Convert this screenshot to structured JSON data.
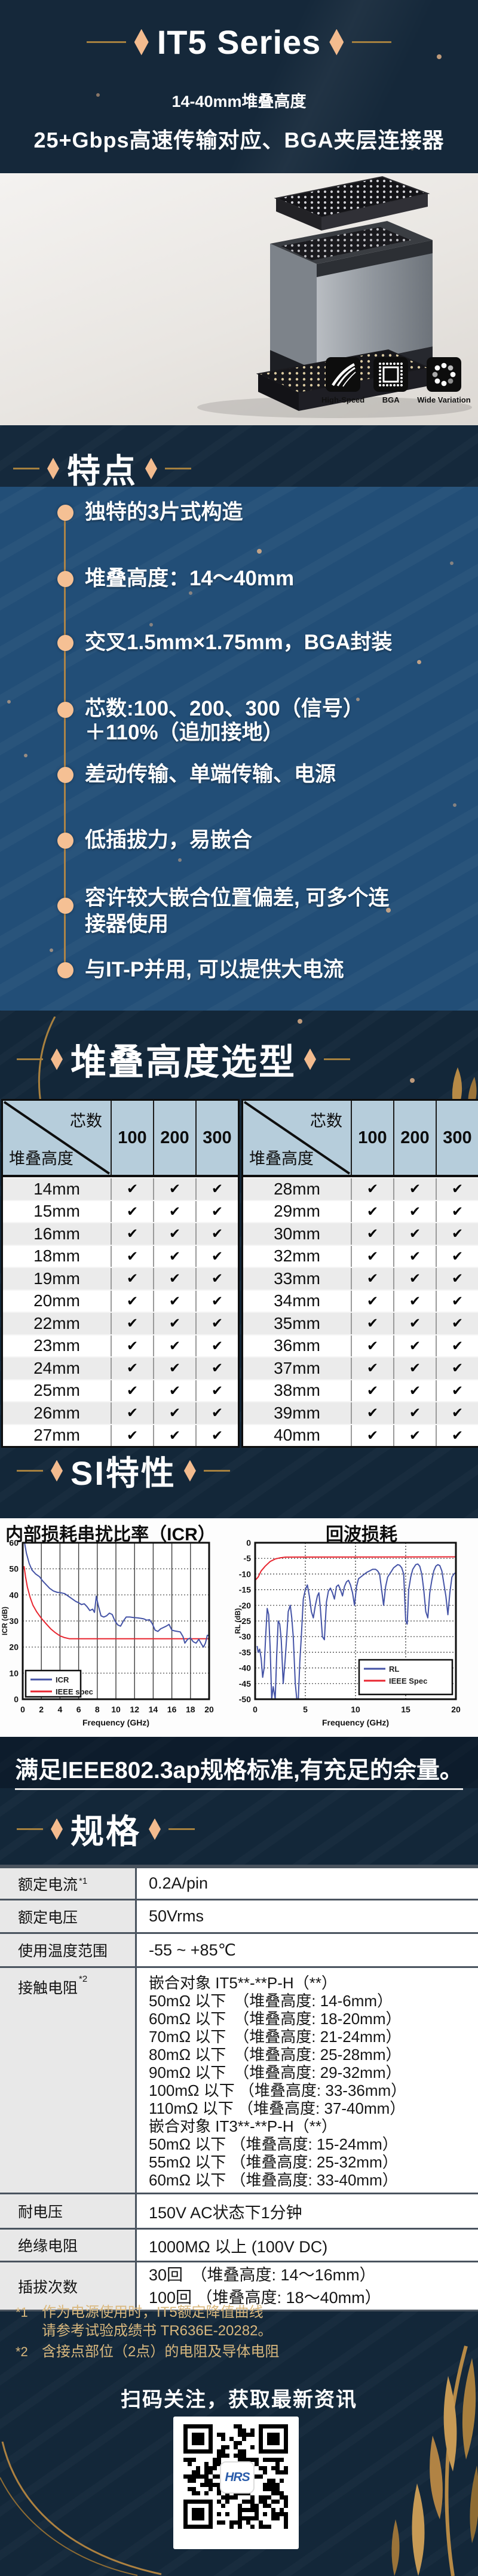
{
  "header": {
    "title": "IT5 Series",
    "subtitle1": "14-40mm堆叠高度",
    "subtitle2": "25+Gbps高速传输对应、BGA夹层连接器"
  },
  "badges": [
    {
      "label": "High-Speed",
      "icon": "highway-icon"
    },
    {
      "label": "BGA",
      "icon": "bga-chip-icon"
    },
    {
      "label": "Wide Variation",
      "icon": "variation-dots-icon"
    }
  ],
  "features": {
    "section_title": "特点",
    "items": [
      "独特的3片式构造",
      "堆叠高度：14～40mm",
      "交叉1.5mm×1.75mm，BGA封装",
      "芯数:100、200、300（信号）\n ＋110%（追加接地）",
      "差动传输、单端传输、电源",
      "低插拔力，易嵌合",
      "容许较大嵌合位置偏差, 可多个连\n接器使用",
      "与IT-P并用, 可以提供大电流"
    ]
  },
  "stack_height": {
    "section_title": "堆叠高度选型",
    "corner_top": "芯数",
    "corner_bottom": "堆叠高度",
    "columns": [
      "100",
      "200",
      "300"
    ],
    "left_rows": [
      {
        "h": "14mm",
        "c1": "✔",
        "c2": "✔",
        "c3": "✔"
      },
      {
        "h": "15mm",
        "c1": "✔",
        "c2": "✔",
        "c3": "✔"
      },
      {
        "h": "16mm",
        "c1": "✔",
        "c2": "✔",
        "c3": "✔"
      },
      {
        "h": "18mm",
        "c1": "✔",
        "c2": "✔",
        "c3": "✔"
      },
      {
        "h": "19mm",
        "c1": "✔",
        "c2": "✔",
        "c3": "✔"
      },
      {
        "h": "20mm",
        "c1": "✔",
        "c2": "✔",
        "c3": "✔"
      },
      {
        "h": "22mm",
        "c1": "✔",
        "c2": "✔",
        "c3": "✔"
      },
      {
        "h": "23mm",
        "c1": "✔",
        "c2": "✔",
        "c3": "✔"
      },
      {
        "h": "24mm",
        "c1": "✔",
        "c2": "✔",
        "c3": "✔"
      },
      {
        "h": "25mm",
        "c1": "✔",
        "c2": "✔",
        "c3": "✔"
      },
      {
        "h": "26mm",
        "c1": "✔",
        "c2": "✔",
        "c3": "✔"
      },
      {
        "h": "27mm",
        "c1": "✔",
        "c2": "✔",
        "c3": "✔"
      }
    ],
    "right_rows": [
      {
        "h": "28mm",
        "c1": "✔",
        "c2": "✔",
        "c3": "✔"
      },
      {
        "h": "29mm",
        "c1": "✔",
        "c2": "✔",
        "c3": "✔"
      },
      {
        "h": "30mm",
        "c1": "✔",
        "c2": "✔",
        "c3": "✔"
      },
      {
        "h": "32mm",
        "c1": "✔",
        "c2": "✔",
        "c3": "✔"
      },
      {
        "h": "33mm",
        "c1": "✔",
        "c2": "✔",
        "c3": "✔"
      },
      {
        "h": "34mm",
        "c1": "✔",
        "c2": "✔",
        "c3": "✔"
      },
      {
        "h": "35mm",
        "c1": "✔",
        "c2": "✔",
        "c3": "✔"
      },
      {
        "h": "36mm",
        "c1": "✔",
        "c2": "✔",
        "c3": "✔"
      },
      {
        "h": "37mm",
        "c1": "✔",
        "c2": "✔",
        "c3": "✔"
      },
      {
        "h": "38mm",
        "c1": "✔",
        "c2": "✔",
        "c3": "✔"
      },
      {
        "h": "39mm",
        "c1": "✔",
        "c2": "✔",
        "c3": "✔"
      },
      {
        "h": "40mm",
        "c1": "✔",
        "c2": "✔",
        "c3": "✔"
      }
    ]
  },
  "si": {
    "section_title": "SI特性",
    "conclusion": "满足IEEE802.3ap规格标准,有充足的余量。"
  },
  "chart_data": [
    {
      "type": "line",
      "title": "内部损耗串扰比率（ICR）",
      "xlabel": "Frequency (GHz)",
      "ylabel": "ICR (dB)",
      "xlim": [
        0,
        20
      ],
      "ylim": [
        0,
        60
      ],
      "xticks": [
        0,
        2,
        4,
        6,
        8,
        10,
        12,
        14,
        16,
        18,
        20
      ],
      "yticks": [
        0,
        10,
        20,
        30,
        40,
        50,
        60
      ],
      "xgrid": "solid",
      "ygrid": "dotted",
      "legend_pos": "bottom-left",
      "series": [
        {
          "name": "ICR",
          "color": "#4453a6",
          "x": [
            0.2,
            0.4,
            0.7,
            1.0,
            1.4,
            1.8,
            2.1,
            2.5,
            2.9,
            3.3,
            3.7,
            4.1,
            4.5,
            4.9,
            5.3,
            5.7,
            6.0,
            6.3,
            6.6,
            6.9,
            7.2,
            7.5,
            7.7,
            7.9,
            8.1,
            8.4,
            8.7,
            9.0,
            9.3,
            9.6,
            9.9,
            10.2,
            10.5,
            10.8,
            11.1,
            11.5,
            11.9,
            12.3,
            12.7,
            13.0,
            13.3,
            13.6,
            13.9,
            14.2,
            14.5,
            14.8,
            15.1,
            15.4,
            15.7,
            16.0,
            16.3,
            16.6,
            16.9,
            17.2,
            17.4,
            17.7,
            18.0,
            18.3,
            18.6,
            18.9,
            19.2,
            19.4,
            19.6,
            19.8,
            20.0
          ],
          "y": [
            60,
            56,
            52,
            49.5,
            48,
            47,
            45.5,
            44,
            42.5,
            41.5,
            41,
            40.8,
            40.5,
            39.5,
            38.5,
            37.5,
            37,
            36.3,
            36.6,
            35.5,
            34,
            34.5,
            33.3,
            39.5,
            36,
            32,
            31.5,
            32,
            33,
            32.5,
            30,
            28.5,
            28,
            30,
            31.5,
            31.5,
            31.3,
            31.2,
            31,
            30.8,
            30.3,
            30.5,
            29,
            26.5,
            26,
            27,
            27.5,
            28,
            28.7,
            26.5,
            26.2,
            26,
            25.8,
            24,
            21.5,
            23,
            23.5,
            22,
            21.5,
            23,
            21,
            20,
            21.5,
            24.5,
            24.5
          ]
        },
        {
          "name": "IEEE spec",
          "color": "#e82630",
          "x": [
            0.15,
            0.3,
            0.5,
            0.8,
            1.1,
            1.5,
            2.0,
            2.5,
            3.0,
            3.5,
            4.0,
            4.5,
            5.0,
            20
          ],
          "y": [
            51,
            47,
            43,
            39,
            36,
            33.5,
            31,
            29,
            27,
            25.5,
            24.3,
            23.6,
            23.2,
            23.2
          ]
        }
      ]
    },
    {
      "type": "line",
      "title": "回波损耗",
      "xlabel": "Frequency (GHz)",
      "ylabel": "RL (dB)",
      "xlim": [
        0,
        20
      ],
      "ylim": [
        -50,
        0
      ],
      "xticks": [
        0,
        5,
        10,
        15,
        20
      ],
      "yticks": [
        0,
        -5,
        -10,
        -15,
        -20,
        -25,
        -30,
        -35,
        -40,
        -45,
        -50
      ],
      "xgrid": "dotted",
      "ygrid": "dotted",
      "legend_pos": "bottom-right",
      "series": [
        {
          "name": "RL",
          "color": "#4453a6",
          "x": [
            0.2,
            0.3,
            0.45,
            0.6,
            0.75,
            0.9,
            1.05,
            1.2,
            1.35,
            1.5,
            1.65,
            1.8,
            2.0,
            2.15,
            2.3,
            2.45,
            2.6,
            2.8,
            3.0,
            3.15,
            3.3,
            3.5,
            3.65,
            3.8,
            4.0,
            4.15,
            4.3,
            4.45,
            4.6,
            4.8,
            5.0,
            5.2,
            5.4,
            5.6,
            5.8,
            6.0,
            6.2,
            6.35,
            6.5,
            6.7,
            6.9,
            7.1,
            7.3,
            7.5,
            7.7,
            7.9,
            8.1,
            8.3,
            8.5,
            8.7,
            8.9,
            9.1,
            9.3,
            9.5,
            9.7,
            9.9,
            10.1,
            10.3,
            10.5,
            10.7,
            10.9,
            11.1,
            11.4,
            11.7,
            12.0,
            12.2,
            12.4,
            12.6,
            12.8,
            13.0,
            13.2,
            13.4,
            13.6,
            13.8,
            14.0,
            14.2,
            14.4,
            14.6,
            14.8,
            15.0,
            15.15,
            15.3,
            15.5,
            15.7,
            16.0,
            16.2,
            16.4,
            16.6,
            16.8,
            17.0,
            17.2,
            17.4,
            17.6,
            17.8,
            18.0,
            18.2,
            18.4,
            18.6,
            18.8,
            19.0,
            19.2,
            19.4,
            19.6,
            19.8,
            20.0
          ],
          "y": [
            -33,
            -35,
            -34,
            -37,
            -43,
            -40,
            -30,
            -21,
            -23,
            -34,
            -50,
            -46,
            -50,
            -36,
            -25,
            -26,
            -31,
            -45,
            -37,
            -30,
            -22,
            -20,
            -24,
            -30,
            -45,
            -50,
            -50,
            -38,
            -30,
            -18,
            -15,
            -13.5,
            -17,
            -22,
            -24,
            -20,
            -17,
            -16,
            -21,
            -30,
            -31,
            -19,
            -15.5,
            -14.5,
            -16,
            -18,
            -14,
            -13.5,
            -15,
            -17,
            -14,
            -12.5,
            -12,
            -13.5,
            -16,
            -20,
            -14,
            -11.5,
            -11,
            -10.5,
            -10,
            -9.5,
            -9,
            -8.5,
            -8.5,
            -9,
            -10,
            -15,
            -20,
            -14,
            -11,
            -10,
            -9,
            -8,
            -7.5,
            -7,
            -7.2,
            -8,
            -10,
            -25,
            -26,
            -15,
            -11,
            -8.5,
            -7,
            -6.8,
            -7.5,
            -10,
            -15,
            -22,
            -24,
            -16,
            -12,
            -9,
            -7.5,
            -7,
            -7.3,
            -9,
            -13,
            -17,
            -23,
            -16,
            -11,
            -10,
            -9.5
          ]
        },
        {
          "name": "IEEE Spec",
          "color": "#e82630",
          "x": [
            0,
            0.3,
            0.6,
            1.0,
            1.5,
            2.0,
            2.5,
            3.0,
            20
          ],
          "y": [
            -12,
            -11,
            -9,
            -7.5,
            -6,
            -5.2,
            -4.8,
            -4.6,
            -4.5
          ]
        }
      ]
    }
  ],
  "specs": {
    "section_title": "规格",
    "rows": [
      {
        "label": "额定电流",
        "sup": "*1",
        "value": "0.2A/pin"
      },
      {
        "label": "额定电压",
        "sup": "",
        "value": "50Vrms"
      },
      {
        "label": "使用温度范围",
        "sup": "",
        "value": "-55 ~ +85℃"
      },
      {
        "label": "接触电阻",
        "sup": "*2",
        "value": [
          "嵌合对象 IT5**-**P-H（**）",
          "50mΩ 以下　（堆叠高度:  14-6mm）",
          "60mΩ 以下　（堆叠高度:  18-20mm）",
          "70mΩ 以下　（堆叠高度:  21-24mm）",
          "80mΩ 以下　（堆叠高度:  25-28mm）",
          "90mΩ 以下　（堆叠高度:  29-32mm）",
          "100mΩ 以下 （堆叠高度:  33-36mm）",
          "110mΩ 以下 （堆叠高度:  37-40mm）",
          "嵌合对象 IT3**-**P-H（**）",
          "50mΩ 以下 （堆叠高度:  15-24mm）",
          "55mΩ 以下 （堆叠高度:  25-32mm）",
          "60mΩ 以下 （堆叠高度:  33-40mm）"
        ]
      },
      {
        "label": "耐电压",
        "sup": "",
        "value": "150V AC状态下1分钟"
      },
      {
        "label": "绝缘电阻",
        "sup": "",
        "value": "1000MΩ 以上  (100V DC)"
      },
      {
        "label": "插拔次数",
        "sup": "",
        "value": "30回　（堆叠高度:  14～16mm）\n100回 （堆叠高度:  18～40mm）"
      }
    ]
  },
  "footnotes": [
    {
      "marker": "*1",
      "lines": "作为电源使用时，IT5额定降值曲线\n请参考试验成绩书 TR636E-20282。"
    },
    {
      "marker": "*2",
      "lines": "含接点部位（2点）的电阻及导体电阻"
    }
  ],
  "footer": {
    "qr_caption": "扫码关注，获取最新资讯",
    "qr_logo": "HRS"
  }
}
